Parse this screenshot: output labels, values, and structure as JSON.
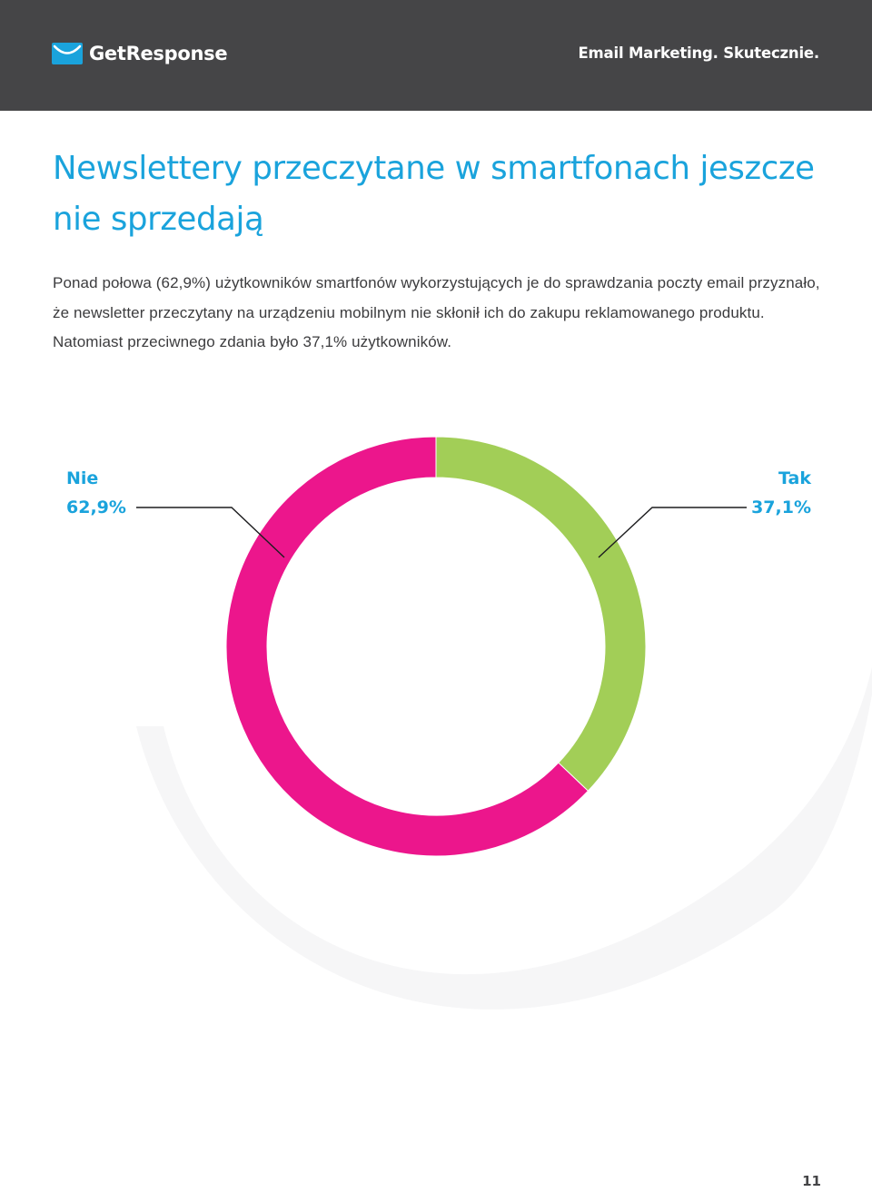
{
  "header": {
    "logo_text": "GetResponse",
    "logo_icon": "envelope-smile-icon",
    "tagline": "Email Marketing. Skutecznie.",
    "background": "#454547"
  },
  "title": "Newslettery przeczytane w smartfonach jeszcze nie sprzedają",
  "body_text": "Ponad połowa (62,9%) użytkowników smartfonów wykorzystujących je do sprawdzania poczty email przyznało, że newsletter przeczytany na urządzeniu mobilnym nie skłonił ich do zakupu reklamowanego produktu. Natomiast przeciwnego zdania było 37,1% użytkowników.",
  "chart_data": {
    "type": "pie",
    "variant": "donut",
    "title": "",
    "categories": [
      "Nie",
      "Tak"
    ],
    "values": [
      62.9,
      37.1
    ],
    "value_labels": [
      "62,9%",
      "37,1%"
    ],
    "colors": [
      "#ec168c",
      "#a2ce57"
    ],
    "start": "top, clockwise from Tak",
    "legend": "callout labels left and right"
  },
  "accent_color": "#1aa3dc",
  "page_number": "11"
}
